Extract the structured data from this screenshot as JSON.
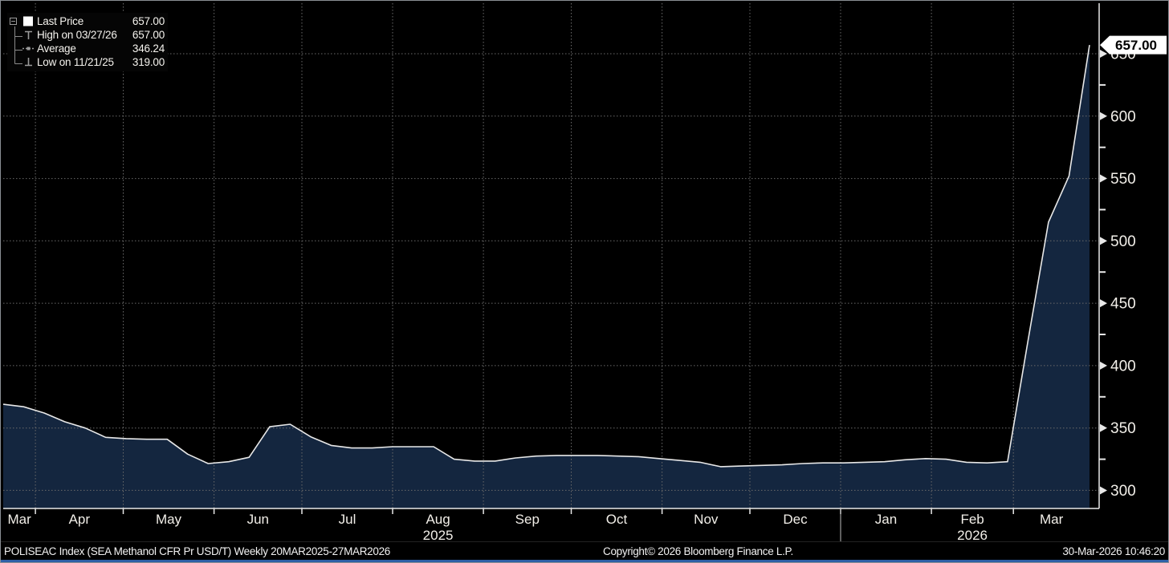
{
  "chart_data": {
    "type": "area",
    "title": "POLISEAC Index (SEA Methanol CFR Pr USD/T) Weekly 20MAR2025-27MAR2026",
    "x_dates": [
      "2025-03-21",
      "2025-03-28",
      "2025-04-04",
      "2025-04-11",
      "2025-04-18",
      "2025-04-25",
      "2025-05-02",
      "2025-05-09",
      "2025-05-16",
      "2025-05-23",
      "2025-05-30",
      "2025-06-06",
      "2025-06-13",
      "2025-06-20",
      "2025-06-27",
      "2025-07-04",
      "2025-07-11",
      "2025-07-18",
      "2025-07-25",
      "2025-08-01",
      "2025-08-08",
      "2025-08-15",
      "2025-08-22",
      "2025-08-29",
      "2025-09-05",
      "2025-09-12",
      "2025-09-19",
      "2025-09-26",
      "2025-10-03",
      "2025-10-10",
      "2025-10-17",
      "2025-10-24",
      "2025-10-31",
      "2025-11-07",
      "2025-11-14",
      "2025-11-21",
      "2025-11-28",
      "2025-12-05",
      "2025-12-12",
      "2025-12-19",
      "2025-12-26",
      "2026-01-02",
      "2026-01-09",
      "2026-01-16",
      "2026-01-23",
      "2026-01-30",
      "2026-02-06",
      "2026-02-13",
      "2026-02-20",
      "2026-02-27",
      "2026-03-06",
      "2026-03-13",
      "2026-03-20",
      "2026-03-27"
    ],
    "values": [
      369,
      367,
      362,
      355,
      350,
      342.5,
      341.5,
      341,
      341,
      329,
      321.5,
      323,
      326.5,
      351,
      353,
      343,
      336,
      334,
      334,
      335,
      335,
      335,
      325,
      323.5,
      323.5,
      326,
      327.5,
      328,
      328,
      328,
      327.5,
      327,
      325.5,
      324,
      322.5,
      319,
      319.5,
      320,
      320.5,
      321.5,
      322,
      322,
      322.5,
      323,
      324.5,
      325.5,
      325,
      322.5,
      322,
      323,
      420,
      515,
      552,
      657
    ],
    "last_price": 657.0,
    "high": {
      "date": "03/27/26",
      "value": 657.0
    },
    "average": 346.24,
    "low": {
      "date": "11/21/25",
      "value": 319.0
    },
    "ylim": [
      285.5,
      690.5
    ],
    "y_ticks_major": [
      300,
      350,
      400,
      450,
      500,
      550,
      600,
      650
    ],
    "y_ticks_minor": [
      325,
      375,
      425,
      475,
      525,
      575,
      625
    ],
    "x_month_labels": [
      "Mar",
      "Apr",
      "May",
      "Jun",
      "Jul",
      "Aug",
      "Sep",
      "Oct",
      "Nov",
      "Dec",
      "Jan",
      "Feb",
      "Mar"
    ],
    "year_labels": [
      {
        "text": "2025",
        "under_month_index": 5
      },
      {
        "text": "2026",
        "under_month_index": 11
      }
    ],
    "grid": "dotted",
    "legend_position": "top-left"
  },
  "legend": {
    "rows": [
      {
        "icon": "series-swatch",
        "label": "Last Price",
        "value": "657.00"
      },
      {
        "icon": "high-marker",
        "label": "High on 03/27/26",
        "value": "657.00"
      },
      {
        "icon": "average-marker",
        "label": "Average",
        "value": "346.24"
      },
      {
        "icon": "low-marker",
        "label": "Low on 11/21/25",
        "value": "319.00"
      }
    ]
  },
  "axis_callout": "657.00",
  "status_bar": {
    "left": "POLISEAC Index (SEA Methanol CFR Pr USD/T) Weekly 20MAR2025-27MAR2026",
    "center": "Copyright© 2026 Bloomberg Finance L.P.",
    "right": "30-Mar-2026 10:46:20"
  },
  "colors": {
    "background": "#000000",
    "area_fill": "#14263f",
    "line": "#e8e8e8",
    "grid": "#6a6a6a",
    "axis": "#e8e8e8",
    "tick_label": "#f2efe9",
    "callout_bg": "#ffffff",
    "callout_text": "#000000",
    "legend_glyph": "#9c9c9c",
    "bottom_edge": "#2d5fa6"
  }
}
